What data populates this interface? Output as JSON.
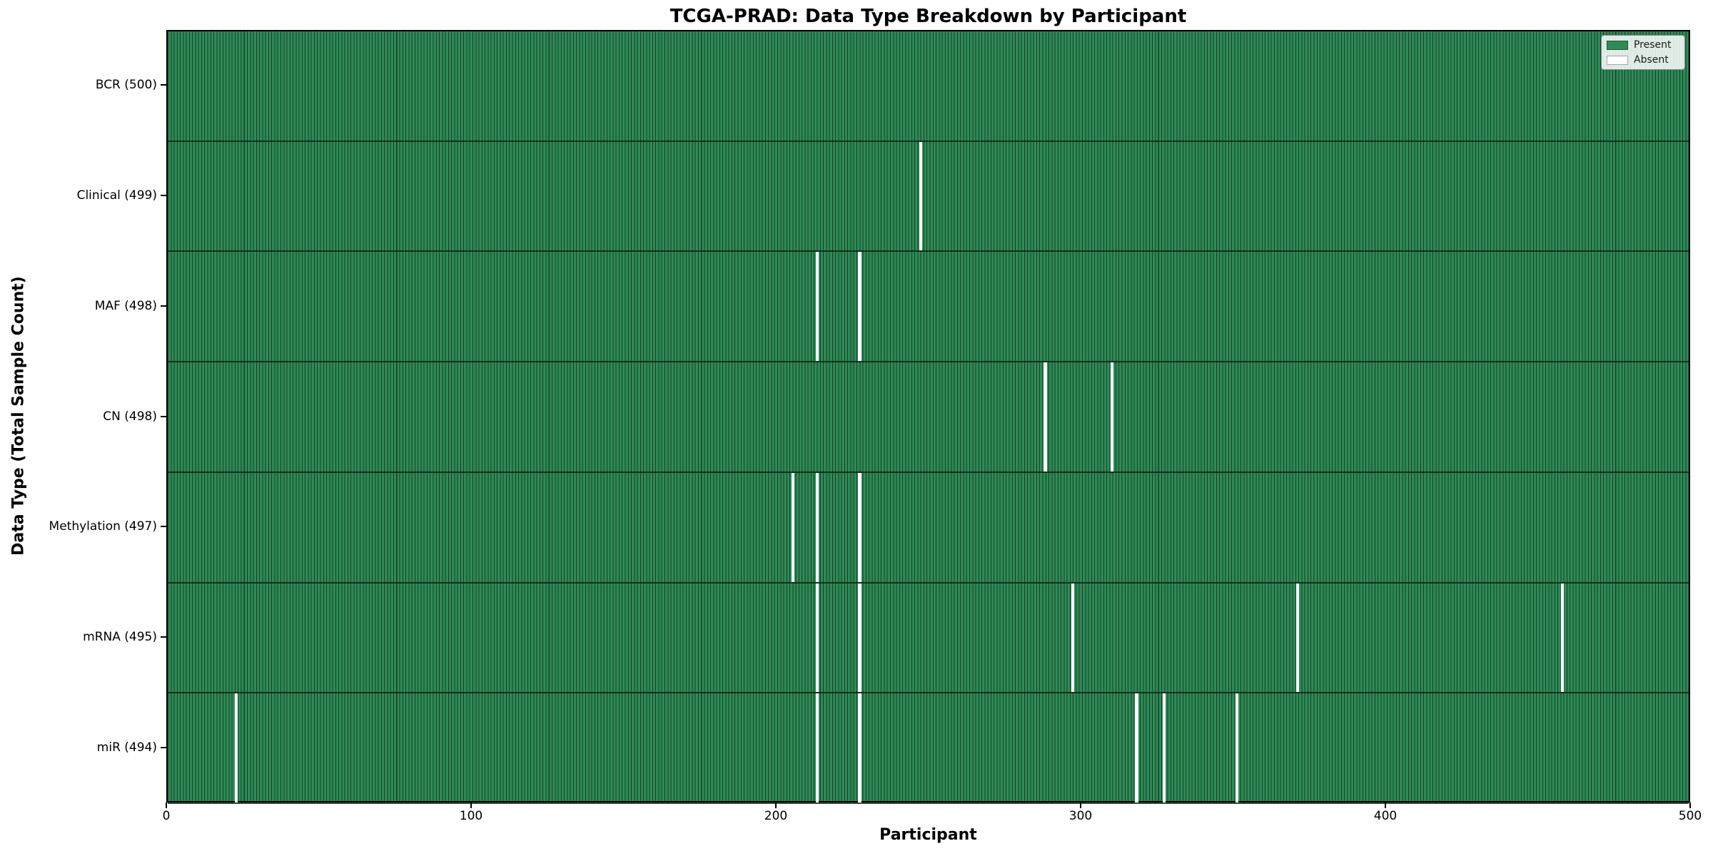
{
  "chart": {
    "title": "TCGA-PRAD: Data Type Breakdown by Participant",
    "xlabel": "Participant",
    "ylabel": "Data Type (Total Sample Count)",
    "legend_present": "Present",
    "legend_absent": "Absent"
  },
  "chart_data": {
    "type": "heatmap",
    "title": "TCGA-PRAD: Data Type Breakdown by Participant",
    "xlabel": "Participant",
    "ylabel": "Data Type (Total Sample Count)",
    "x_range": [
      0,
      500
    ],
    "x_ticks": [
      0,
      100,
      200,
      300,
      400,
      500
    ],
    "n_participants": 500,
    "grid": "cell-edges",
    "legend_position": "upper right",
    "legend": [
      {
        "label": "Present",
        "color": "#2e8b57"
      },
      {
        "label": "Absent",
        "color": "#ffffff"
      }
    ],
    "colors": {
      "present": "#2e8b57",
      "absent": "#ffffff",
      "cell_edge": "rgba(0,0,0,0.55)",
      "spine": "#000000"
    },
    "rows": [
      {
        "label": "BCR (500)",
        "data_type": "BCR",
        "present_count": 500,
        "absent_participants": []
      },
      {
        "label": "Clinical (499)",
        "data_type": "Clinical",
        "present_count": 499,
        "absent_participants": [
          247
        ]
      },
      {
        "label": "MAF (498)",
        "data_type": "MAF",
        "present_count": 498,
        "absent_participants": [
          213,
          227
        ]
      },
      {
        "label": "CN (498)",
        "data_type": "CN",
        "present_count": 498,
        "absent_participants": [
          288,
          310
        ]
      },
      {
        "label": "Methylation (497)",
        "data_type": "Methylation",
        "present_count": 497,
        "absent_participants": [
          205,
          213,
          227
        ]
      },
      {
        "label": "mRNA (495)",
        "data_type": "mRNA",
        "present_count": 495,
        "absent_participants": [
          213,
          227,
          297,
          371,
          458
        ]
      },
      {
        "label": "miR (494)",
        "data_type": "miR",
        "present_count": 494,
        "absent_participants": [
          22,
          213,
          227,
          318,
          327,
          351
        ]
      }
    ]
  }
}
